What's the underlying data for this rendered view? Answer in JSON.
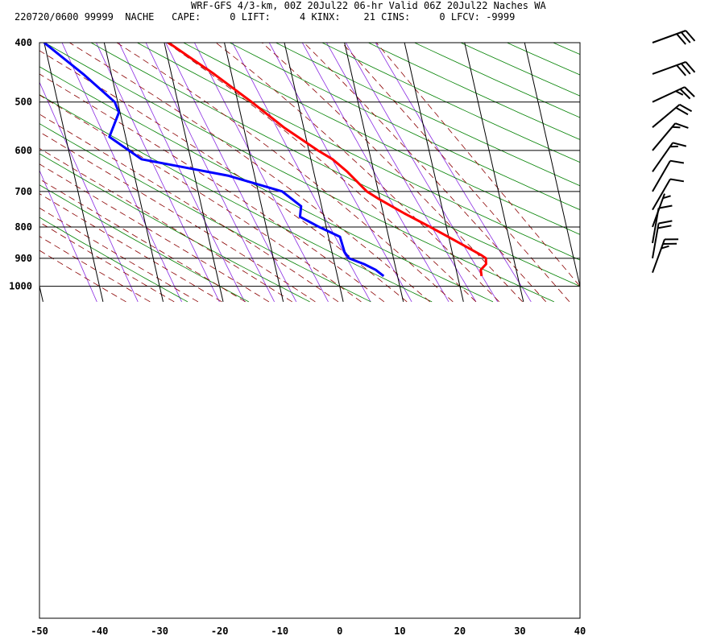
{
  "header": {
    "line1": "WRF-GFS 4/3-km, 00Z 20Jul22 06-hr Valid 06Z 20Jul22 Naches WA",
    "line2": "220720/0600 99999  NACHE   CAPE:     0 LIFT:     4 KINX:    21 CINS:     0 LFCV: -9999"
  },
  "colors": {
    "temperature": "#ff0000",
    "dewpoint": "#0000ff",
    "isotherm": "#000000",
    "dry_adiabat": "#008000",
    "moist_adiabat": "#8b0000",
    "mixing_ratio": "#8a2be2"
  },
  "chart_data": {
    "type": "line",
    "subtype": "skew-T log-p sounding",
    "xlabel": "",
    "ylabel": "",
    "xlim": [
      -50,
      40
    ],
    "ylim": [
      1050,
      400
    ],
    "y_scale": "log",
    "grid": true,
    "x_ticks": [
      "-50",
      "-40",
      "-30",
      "-20",
      "-10",
      "0",
      "10",
      "20",
      "30",
      "40"
    ],
    "y_ticks": [
      "400",
      "500",
      "600",
      "700",
      "800",
      "900",
      "1000"
    ],
    "series": [
      {
        "role": "temperature",
        "color": "#ff0000",
        "points": [
          {
            "p": 962,
            "t": 24.0
          },
          {
            "p": 940,
            "t": 24.1
          },
          {
            "p": 920,
            "t": 25.2
          },
          {
            "p": 900,
            "t": 25.4
          },
          {
            "p": 890,
            "t": 24.8
          },
          {
            "p": 860,
            "t": 22.4
          },
          {
            "p": 830,
            "t": 19.9
          },
          {
            "p": 800,
            "t": 17.3
          },
          {
            "p": 760,
            "t": 13.5
          },
          {
            "p": 720,
            "t": 9.8
          },
          {
            "p": 700,
            "t": 8.1
          },
          {
            "p": 650,
            "t": 5.6
          },
          {
            "p": 620,
            "t": 3.6
          },
          {
            "p": 600,
            "t": 1.5
          },
          {
            "p": 550,
            "t": -3.3
          },
          {
            "p": 500,
            "t": -7.7
          },
          {
            "p": 450,
            "t": -12.9
          },
          {
            "p": 400,
            "t": -19.3
          }
        ]
      },
      {
        "role": "dewpoint",
        "color": "#0000ff",
        "points": [
          {
            "p": 962,
            "t": 7.7
          },
          {
            "p": 940,
            "t": 6.6
          },
          {
            "p": 920,
            "t": 4.9
          },
          {
            "p": 900,
            "t": 2.6
          },
          {
            "p": 880,
            "t": 2.1
          },
          {
            "p": 830,
            "t": 1.9
          },
          {
            "p": 800,
            "t": -1.2
          },
          {
            "p": 770,
            "t": -4.0
          },
          {
            "p": 740,
            "t": -3.4
          },
          {
            "p": 700,
            "t": -6.0
          },
          {
            "p": 660,
            "t": -14.3
          },
          {
            "p": 620,
            "t": -28.2
          },
          {
            "p": 570,
            "t": -32.7
          },
          {
            "p": 520,
            "t": -30.2
          },
          {
            "p": 500,
            "t": -30.5
          },
          {
            "p": 450,
            "t": -34.7
          },
          {
            "p": 400,
            "t": -40.0
          }
        ]
      }
    ],
    "wind_barbs": {
      "levels": [
        "400",
        "450",
        "500",
        "550",
        "600",
        "650",
        "700",
        "750",
        "800",
        "850",
        "900",
        "950"
      ],
      "direction_deg": [
        250,
        250,
        245,
        230,
        220,
        215,
        210,
        210,
        200,
        190,
        190,
        200
      ],
      "speed_kt": [
        30,
        30,
        25,
        20,
        15,
        15,
        10,
        10,
        5,
        10,
        20,
        25
      ]
    }
  }
}
